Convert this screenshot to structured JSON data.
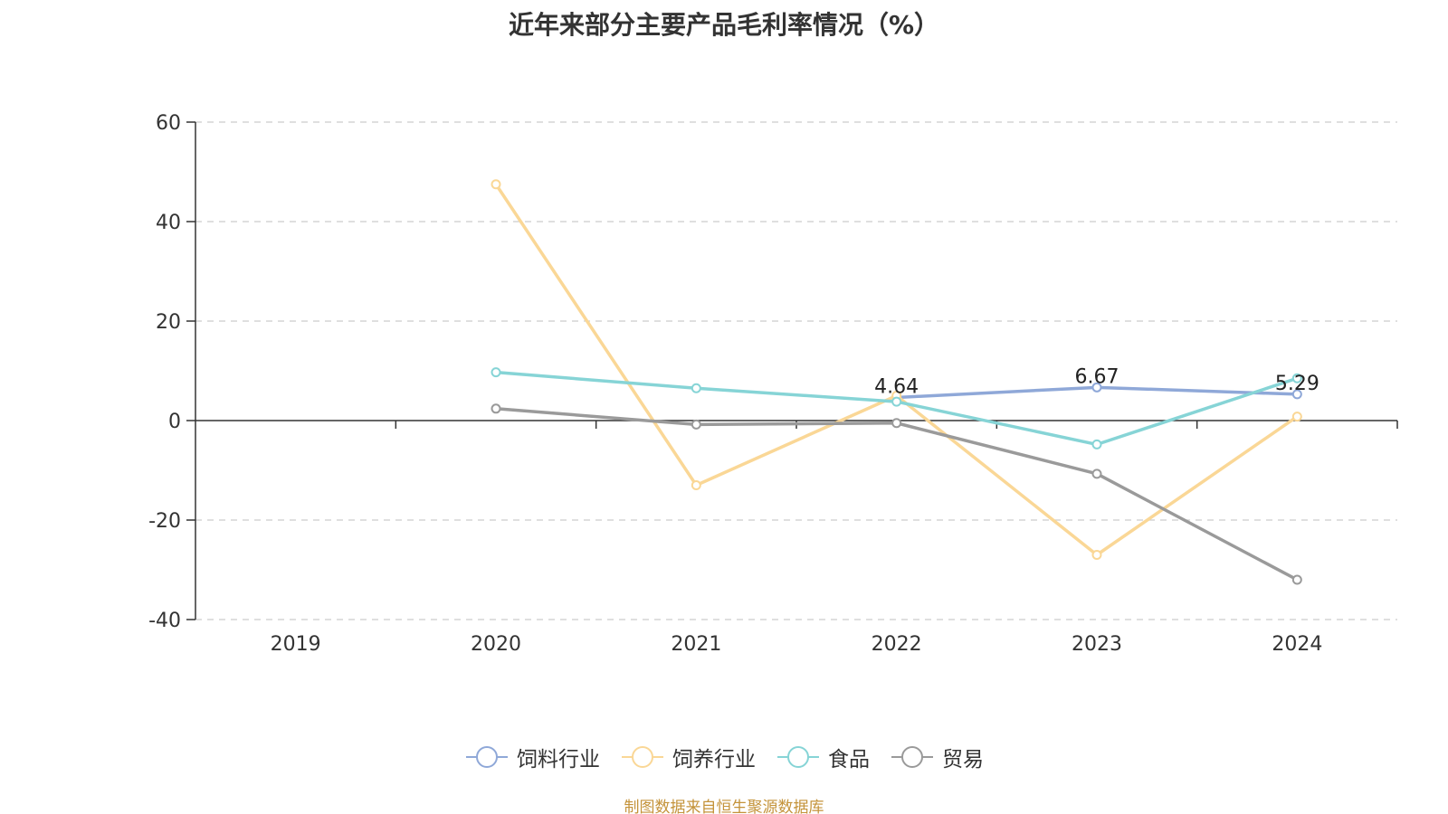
{
  "source_note": "制图数据来自恒生聚源数据库",
  "chart_data": {
    "type": "line",
    "title": "近年来部分主要产品毛利率情况（%）",
    "categories": [
      "2019",
      "2020",
      "2021",
      "2022",
      "2023",
      "2024"
    ],
    "ylim": [
      -40,
      60
    ],
    "yticks": [
      "60",
      "40",
      "20",
      "0",
      "-20",
      "-40"
    ],
    "grid": true,
    "legend_position": "bottom",
    "series": [
      {
        "name": "饲料行业",
        "color": "#8fa8d8",
        "values": [
          null,
          null,
          null,
          4.64,
          6.67,
          5.29
        ],
        "labels": [
          "",
          "",
          "",
          "4.64",
          "6.67",
          "5.29"
        ]
      },
      {
        "name": "饲养行业",
        "color": "#fad796",
        "values": [
          null,
          47.5,
          -13.0,
          5.0,
          -27.0,
          0.8
        ],
        "labels": [
          "",
          "",
          "",
          "",
          "",
          ""
        ]
      },
      {
        "name": "食品",
        "color": "#86d4d6",
        "values": [
          null,
          9.7,
          6.5,
          3.8,
          -4.8,
          8.5
        ],
        "labels": [
          "",
          "",
          "",
          "",
          "",
          ""
        ]
      },
      {
        "name": "贸易",
        "color": "#9a9a9a",
        "values": [
          null,
          2.4,
          -0.8,
          -0.5,
          -10.7,
          -32.0
        ],
        "labels": [
          "",
          "",
          "",
          "",
          "",
          ""
        ]
      }
    ]
  }
}
